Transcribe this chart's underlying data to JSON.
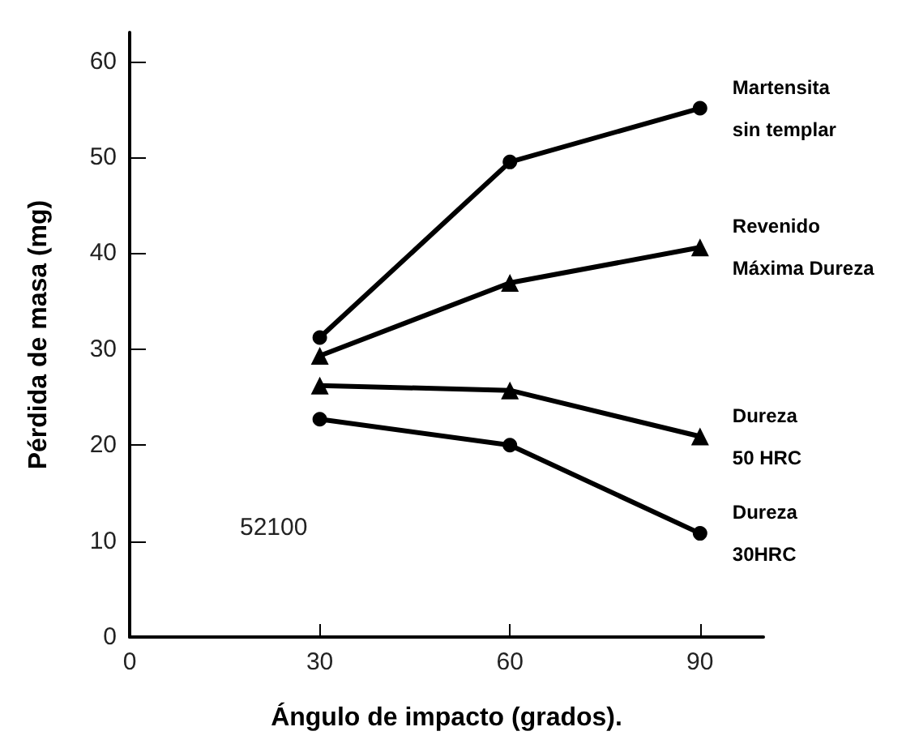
{
  "chart_data": {
    "type": "line",
    "xlabel": "Ángulo de impacto (grados).",
    "ylabel": "Pérdida de masa (mg)",
    "annotations": [
      "52100"
    ],
    "x": [
      30,
      60,
      90
    ],
    "series": [
      {
        "name": "Martensita\nsin templar",
        "color": "#000000",
        "marker": "circle",
        "values": [
          31.2,
          49.5,
          55.1
        ]
      },
      {
        "name": "Revenido\nMáxima Dureza",
        "color": "#000000",
        "marker": "triangle",
        "values": [
          29.3,
          36.9,
          40.6
        ]
      },
      {
        "name": "Dureza\n50 HRC",
        "color": "#000000",
        "marker": "triangle",
        "values": [
          26.2,
          25.7,
          20.9
        ]
      },
      {
        "name": "Dureza\n30HRC",
        "color": "#000000",
        "marker": "circle",
        "values": [
          22.7,
          20.0,
          10.8
        ]
      }
    ],
    "xlim": [
      0,
      100
    ],
    "xticks": [
      0,
      30,
      60,
      90
    ],
    "ylim": [
      0,
      63
    ],
    "yticks": [
      0,
      10,
      20,
      30,
      40,
      50,
      60
    ],
    "grid": false,
    "legend": false,
    "line_style": "solid"
  }
}
